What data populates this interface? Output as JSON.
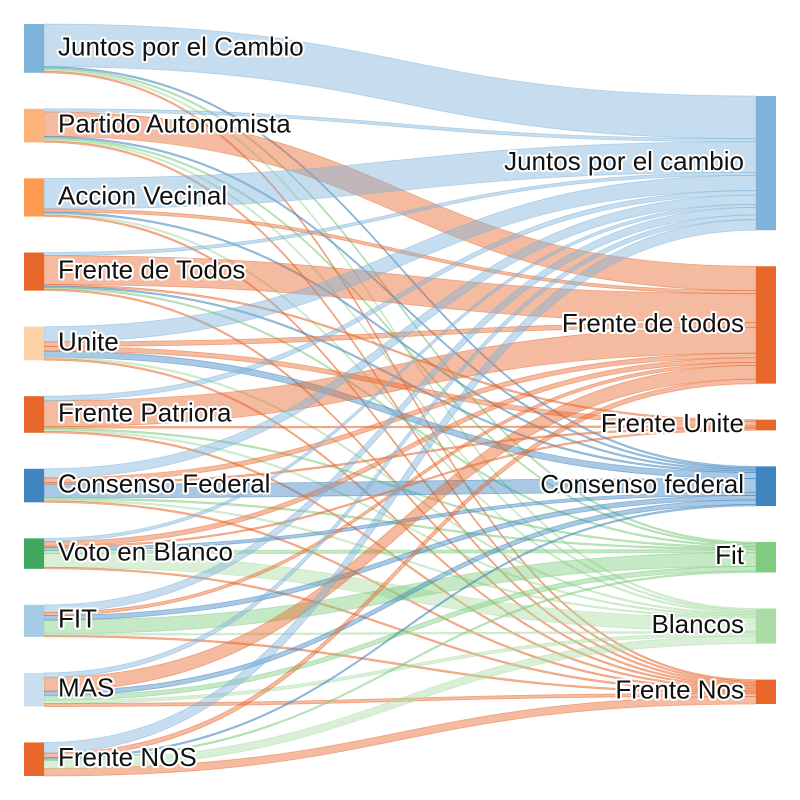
{
  "chart_data": {
    "type": "sankey",
    "sources": [
      {
        "name": "Juntos por el Cambio",
        "color": "#7fb4da"
      },
      {
        "name": "Partido Autonomista",
        "color": "#fdb47b"
      },
      {
        "name": "Accion Vecinal",
        "color": "#fd9a4f"
      },
      {
        "name": "Frente de Todos",
        "color": "#e8682c"
      },
      {
        "name": "Unite",
        "color": "#fdd2a6"
      },
      {
        "name": "Frente Patriora",
        "color": "#e8682c"
      },
      {
        "name": "Consenso Federal",
        "color": "#3f86c0"
      },
      {
        "name": "Voto en Blanco",
        "color": "#41a85f"
      },
      {
        "name": "FIT",
        "color": "#a6cbe6"
      },
      {
        "name": "MAS",
        "color": "#c9def1"
      },
      {
        "name": "Frente NOS",
        "color": "#e8682c"
      }
    ],
    "targets": [
      {
        "name": "Juntos por el cambio",
        "color": "#7fb4da"
      },
      {
        "name": "Frente de todos",
        "color": "#e8682c"
      },
      {
        "name": "Frente Unite",
        "color": "#e8682c"
      },
      {
        "name": "Consenso federal",
        "color": "#3f86c0"
      },
      {
        "name": "Fit",
        "color": "#7fcb7f"
      },
      {
        "name": "Blancos",
        "color": "#aadda6"
      },
      {
        "name": "Frente Nos",
        "color": "#e8682c"
      }
    ],
    "flows": [
      {
        "s": 0,
        "t": 0,
        "v": 28
      },
      {
        "s": 0,
        "t": 3,
        "v": 1
      },
      {
        "s": 0,
        "t": 4,
        "v": 1
      },
      {
        "s": 0,
        "t": 5,
        "v": 1
      },
      {
        "s": 0,
        "t": 6,
        "v": 1
      },
      {
        "s": 1,
        "t": 1,
        "v": 16
      },
      {
        "s": 1,
        "t": 0,
        "v": 2
      },
      {
        "s": 1,
        "t": 3,
        "v": 1
      },
      {
        "s": 1,
        "t": 4,
        "v": 1
      },
      {
        "s": 1,
        "t": 5,
        "v": 1
      },
      {
        "s": 1,
        "t": 6,
        "v": 1
      },
      {
        "s": 2,
        "t": 0,
        "v": 20
      },
      {
        "s": 2,
        "t": 1,
        "v": 2
      },
      {
        "s": 2,
        "t": 3,
        "v": 1
      },
      {
        "s": 2,
        "t": 5,
        "v": 1
      },
      {
        "s": 2,
        "t": 6,
        "v": 1
      },
      {
        "s": 3,
        "t": 1,
        "v": 19
      },
      {
        "s": 3,
        "t": 0,
        "v": 2
      },
      {
        "s": 3,
        "t": 2,
        "v": 1
      },
      {
        "s": 3,
        "t": 3,
        "v": 1
      },
      {
        "s": 3,
        "t": 4,
        "v": 1
      },
      {
        "s": 3,
        "t": 6,
        "v": 1
      },
      {
        "s": 4,
        "t": 0,
        "v": 10
      },
      {
        "s": 4,
        "t": 1,
        "v": 3
      },
      {
        "s": 4,
        "t": 2,
        "v": 3
      },
      {
        "s": 4,
        "t": 3,
        "v": 4
      },
      {
        "s": 4,
        "t": 5,
        "v": 1
      },
      {
        "s": 4,
        "t": 6,
        "v": 1
      },
      {
        "s": 5,
        "t": 1,
        "v": 17
      },
      {
        "s": 5,
        "t": 0,
        "v": 3
      },
      {
        "s": 5,
        "t": 2,
        "v": 1
      },
      {
        "s": 5,
        "t": 4,
        "v": 1
      },
      {
        "s": 5,
        "t": 5,
        "v": 1
      },
      {
        "s": 5,
        "t": 6,
        "v": 1
      },
      {
        "s": 6,
        "t": 3,
        "v": 9
      },
      {
        "s": 6,
        "t": 0,
        "v": 6
      },
      {
        "s": 6,
        "t": 1,
        "v": 3
      },
      {
        "s": 6,
        "t": 2,
        "v": 1
      },
      {
        "s": 6,
        "t": 4,
        "v": 1
      },
      {
        "s": 6,
        "t": 5,
        "v": 1
      },
      {
        "s": 6,
        "t": 6,
        "v": 1
      },
      {
        "s": 7,
        "t": 5,
        "v": 9
      },
      {
        "s": 7,
        "t": 0,
        "v": 2
      },
      {
        "s": 7,
        "t": 1,
        "v": 3
      },
      {
        "s": 7,
        "t": 2,
        "v": 1
      },
      {
        "s": 7,
        "t": 3,
        "v": 2
      },
      {
        "s": 7,
        "t": 4,
        "v": 2
      },
      {
        "s": 7,
        "t": 6,
        "v": 1
      },
      {
        "s": 8,
        "t": 4,
        "v": 9
      },
      {
        "s": 8,
        "t": 0,
        "v": 5
      },
      {
        "s": 8,
        "t": 1,
        "v": 2
      },
      {
        "s": 8,
        "t": 3,
        "v": 3
      },
      {
        "s": 8,
        "t": 5,
        "v": 1
      },
      {
        "s": 8,
        "t": 6,
        "v": 1
      },
      {
        "s": 9,
        "t": 1,
        "v": 9
      },
      {
        "s": 9,
        "t": 0,
        "v": 3
      },
      {
        "s": 9,
        "t": 3,
        "v": 3
      },
      {
        "s": 9,
        "t": 4,
        "v": 3
      },
      {
        "s": 9,
        "t": 5,
        "v": 2
      },
      {
        "s": 9,
        "t": 6,
        "v": 2
      },
      {
        "s": 10,
        "t": 6,
        "v": 5
      },
      {
        "s": 10,
        "t": 0,
        "v": 7
      },
      {
        "s": 10,
        "t": 1,
        "v": 3
      },
      {
        "s": 10,
        "t": 5,
        "v": 5
      },
      {
        "s": 10,
        "t": 4,
        "v": 1
      },
      {
        "s": 10,
        "t": 3,
        "v": 1
      }
    ]
  }
}
